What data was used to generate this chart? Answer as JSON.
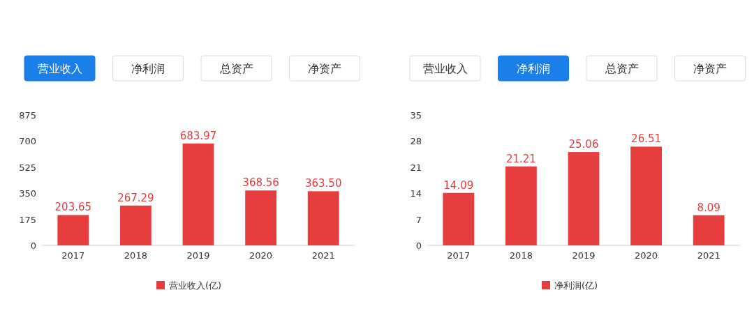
{
  "chart_data": [
    {
      "type": "bar",
      "categories": [
        "2017",
        "2018",
        "2019",
        "2020",
        "2021"
      ],
      "series": [
        {
          "name": "营业收入(亿)",
          "color": "#e63e3f",
          "values": [
            203.65,
            267.29,
            683.97,
            368.56,
            363.5
          ]
        }
      ],
      "value_labels": [
        "203.65",
        "267.29",
        "683.97",
        "368.56",
        "363.50"
      ],
      "ylim": [
        0,
        875
      ],
      "yticks": [
        0,
        175,
        350,
        525,
        700,
        875
      ],
      "legend": "bottom",
      "annotations": [
        "营业收入",
        "净利润",
        "总资产",
        "净资产"
      ]
    },
    {
      "type": "bar",
      "categories": [
        "2017",
        "2018",
        "2019",
        "2020",
        "2021"
      ],
      "series": [
        {
          "name": "净利润(亿)",
          "color": "#e63e3f",
          "values": [
            14.09,
            21.21,
            25.06,
            26.51,
            8.09
          ]
        }
      ],
      "data_labels": true,
      "ylim": [
        0,
        35
      ],
      "yticks": [
        0,
        7,
        14,
        21,
        28,
        35
      ],
      "legend": "bottom",
      "annotations": [
        "营业收入",
        "净利润",
        "总资产",
        "净资产"
      ]
    }
  ]
}
